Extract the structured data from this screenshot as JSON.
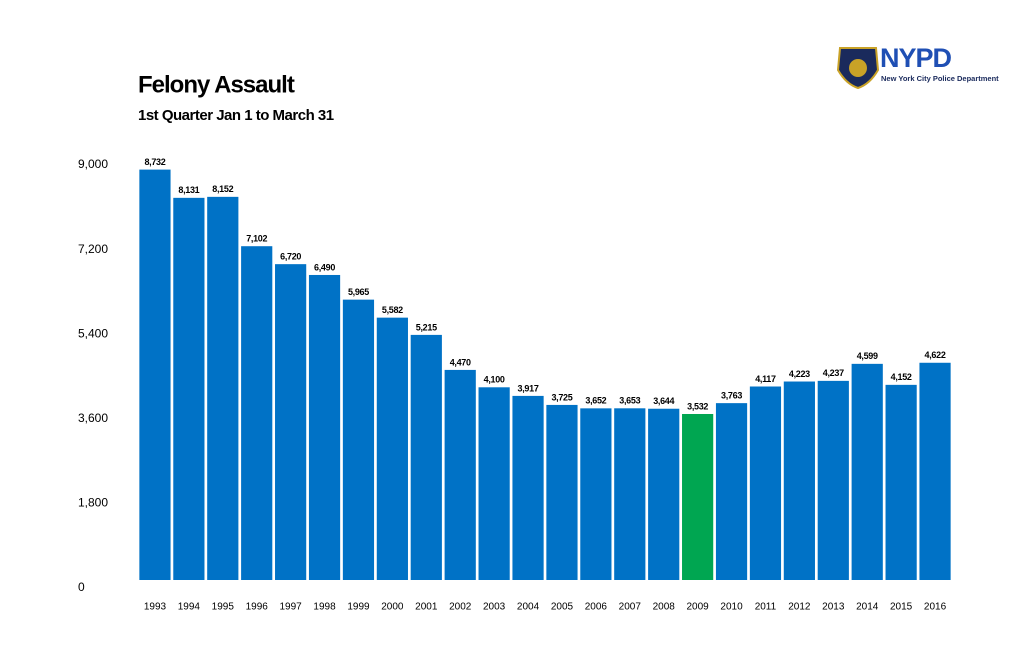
{
  "chart_data": {
    "type": "bar",
    "title": "Felony Assault",
    "subtitle": "1st Quarter Jan 1 to March 31",
    "logo": {
      "text": "NYPD",
      "subtitle": "New York City Police Department"
    },
    "categories": [
      "1993",
      "1994",
      "1995",
      "1996",
      "1997",
      "1998",
      "1999",
      "2000",
      "2001",
      "2002",
      "2003",
      "2004",
      "2005",
      "2006",
      "2007",
      "2008",
      "2009",
      "2010",
      "2011",
      "2012",
      "2013",
      "2014",
      "2015",
      "2016"
    ],
    "values": [
      8732,
      8131,
      8152,
      7102,
      6720,
      6490,
      5965,
      5582,
      5215,
      4470,
      4100,
      3917,
      3725,
      3652,
      3653,
      3644,
      3532,
      3763,
      4117,
      4223,
      4237,
      4599,
      4152,
      4622
    ],
    "value_labels": [
      "8,732",
      "8,131",
      "8,152",
      "7,102",
      "6,720",
      "6,490",
      "5,965",
      "5,582",
      "5,215",
      "4,470",
      "4,100",
      "3,917",
      "3,725",
      "3,652",
      "3,653",
      "3,644",
      "3,532",
      "3,763",
      "4,117",
      "4,223",
      "4,237",
      "4,599",
      "4,152",
      "4,622"
    ],
    "colors": [
      "#0072c6",
      "#0072c6",
      "#0072c6",
      "#0072c6",
      "#0072c6",
      "#0072c6",
      "#0072c6",
      "#0072c6",
      "#0072c6",
      "#0072c6",
      "#0072c6",
      "#0072c6",
      "#0072c6",
      "#0072c6",
      "#0072c6",
      "#0072c6",
      "#00a651",
      "#0072c6",
      "#0072c6",
      "#0072c6",
      "#0072c6",
      "#0072c6",
      "#0072c6",
      "#0072c6"
    ],
    "ylim": [
      0,
      9000
    ],
    "yticks": [
      0,
      {
        "value": 1800,
        "label": "1,800"
      },
      {
        "value": 3600,
        "label": "3,600"
      },
      {
        "value": 5400,
        "label": "5,400"
      },
      {
        "value": 7200,
        "label": "7,200"
      },
      {
        "value": 9000,
        "label": "9,000"
      }
    ],
    "grid": false
  }
}
